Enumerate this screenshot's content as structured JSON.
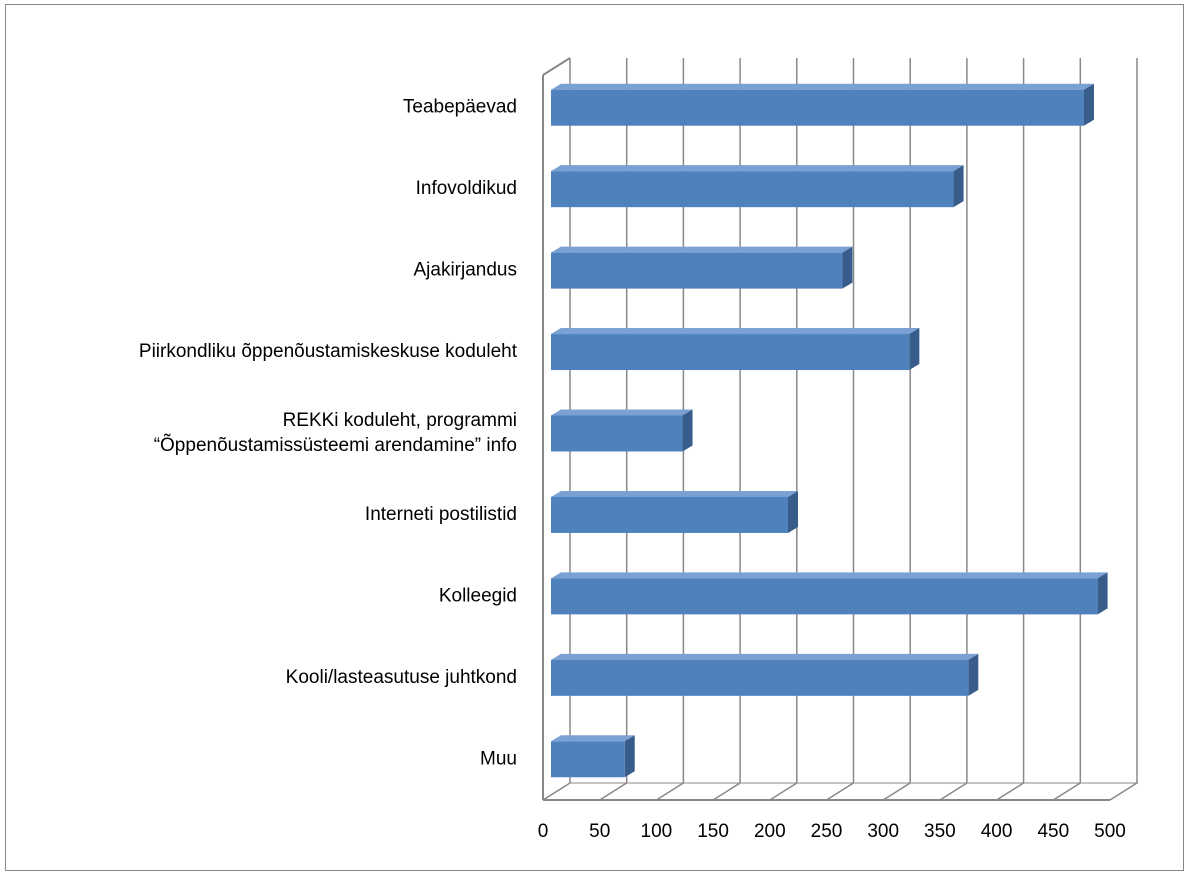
{
  "chart_data": {
    "type": "bar3d_horizontal",
    "categories": [
      "Teabepäevad",
      "Infovoldikud",
      "Ajakirjandus",
      "Piirkondliku õppenõustamiskeskuse koduleht",
      "REKKi koduleht, programmi\n“Õppenõustamissüsteemi arendamine” info",
      "Interneti postilistid",
      "Kolleegid",
      "Kooli/lasteasutuse juhtkond",
      "Muu"
    ],
    "values": [
      470,
      355,
      257,
      316,
      116,
      209,
      482,
      368,
      65
    ],
    "color": "#4f81bd",
    "xlim": [
      0,
      500
    ],
    "xticks": [
      0,
      50,
      100,
      150,
      200,
      250,
      300,
      350,
      400,
      450,
      500
    ],
    "grid": true
  }
}
